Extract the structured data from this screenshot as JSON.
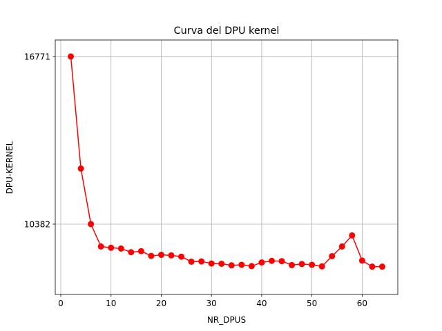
{
  "chart_data": {
    "type": "line",
    "title": "Curva del DPU kernel",
    "xlabel": "NR_DPUS",
    "ylabel": "DPU-KERNEL",
    "xlim": [
      -1.1,
      67.1
    ],
    "ylim": [
      7700,
      17400
    ],
    "xticks": [
      0,
      10,
      20,
      30,
      40,
      50,
      60
    ],
    "yticks": [
      10382,
      16771
    ],
    "grid": true,
    "legend": "none",
    "series": [
      {
        "color": "#ff0000",
        "marker": "circle",
        "x": [
          2,
          4,
          6,
          8,
          10,
          12,
          14,
          16,
          18,
          20,
          22,
          24,
          26,
          28,
          30,
          32,
          34,
          36,
          38,
          40,
          42,
          44,
          46,
          48,
          50,
          52,
          54,
          56,
          58,
          60,
          62,
          64
        ],
        "y": [
          16771,
          12500,
          10382,
          9530,
          9480,
          9450,
          9310,
          9350,
          9170,
          9210,
          9190,
          9140,
          8950,
          8960,
          8880,
          8870,
          8810,
          8830,
          8780,
          8920,
          8980,
          8970,
          8820,
          8860,
          8830,
          8770,
          9160,
          9530,
          9950,
          8990,
          8760,
          8760
        ]
      }
    ]
  }
}
